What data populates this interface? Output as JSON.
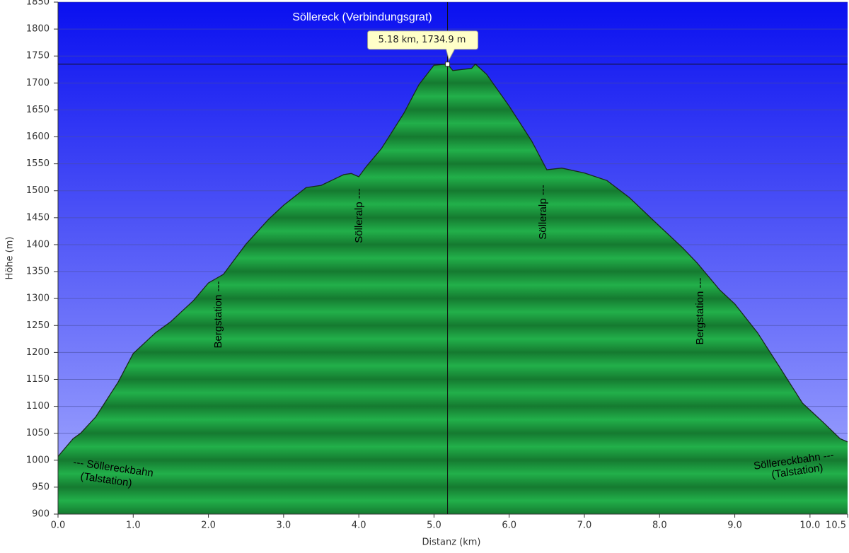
{
  "chart_data": {
    "type": "area",
    "title": "Söllereck (Verbindungsgrat)",
    "x_label": "Distanz  (km)",
    "y_label": "Höhe (m)",
    "x": [
      0,
      0.2,
      0.3,
      0.5,
      0.8,
      1.0,
      1.3,
      1.5,
      1.8,
      2.0,
      2.2,
      2.5,
      2.8,
      3.0,
      3.3,
      3.5,
      3.8,
      3.9,
      4.0,
      4.1,
      4.3,
      4.6,
      4.8,
      5.0,
      5.18,
      5.25,
      5.5,
      5.55,
      5.7,
      6.0,
      6.3,
      6.5,
      6.7,
      7.0,
      7.3,
      7.6,
      8.0,
      8.3,
      8.5,
      8.8,
      9.0,
      9.3,
      9.6,
      9.9,
      10.2,
      10.4,
      10.5
    ],
    "series": [
      {
        "color": "#1fa845",
        "values": [
          1007,
          1040,
          1050,
          1080,
          1145,
          1198,
          1237,
          1257,
          1296,
          1329,
          1345,
          1401,
          1447,
          1473,
          1506,
          1510,
          1530,
          1532,
          1526,
          1545,
          1578,
          1644,
          1697,
          1733,
          1735,
          1723,
          1727,
          1735,
          1716,
          1657,
          1592,
          1539,
          1542,
          1533,
          1519,
          1487,
          1434,
          1395,
          1366,
          1316,
          1290,
          1237,
          1172,
          1106,
          1067,
          1040,
          1034
        ]
      }
    ],
    "xlim": [
      0,
      10.5
    ],
    "ylim": [
      900,
      1850
    ],
    "xticks": [
      {
        "value": 0,
        "label": "0.0"
      },
      {
        "value": 1,
        "label": "1.0"
      },
      {
        "value": 2,
        "label": "2.0"
      },
      {
        "value": 3,
        "label": "3.0"
      },
      {
        "value": 4,
        "label": "4.0"
      },
      {
        "value": 5,
        "label": "5.0"
      },
      {
        "value": 6,
        "label": "6.0"
      },
      {
        "value": 7,
        "label": "7.0"
      },
      {
        "value": 8,
        "label": "8.0"
      },
      {
        "value": 9,
        "label": "9.0"
      },
      {
        "value": 10,
        "label": "10.0"
      },
      {
        "value": 10.5,
        "label": "10.5"
      }
    ],
    "yticks": [
      900,
      950,
      1000,
      1050,
      1100,
      1150,
      1200,
      1250,
      1300,
      1350,
      1400,
      1450,
      1500,
      1550,
      1600,
      1650,
      1700,
      1750,
      1800,
      1850
    ],
    "grid": true,
    "cursor": {
      "x": 5.18,
      "y": 1734.9,
      "label": "5.18 km, 1734.9 m"
    },
    "annotations": [
      "Bergstation ---",
      "Sölleralp ---",
      "Sölleralp ---",
      "Bergstation ---",
      "--- Söllereckbahn",
      "(Talstation)",
      "Söllereckbahn ---",
      "(Talstation)"
    ]
  }
}
